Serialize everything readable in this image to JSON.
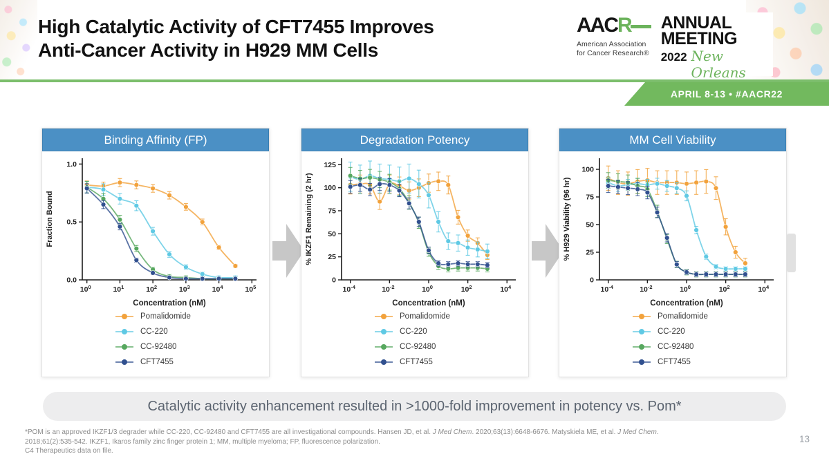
{
  "header": {
    "title_line1": "High Catalytic Activity of CFT7455 Improves",
    "title_line2": "Anti-Cancer Activity in H929 MM Cells",
    "logo": {
      "acronym_black": "AAC",
      "acronym_green": "R",
      "org_line1": "American Association",
      "org_line2": "for Cancer Research®",
      "event_line1": "ANNUAL",
      "event_line2": "MEETING",
      "year": "2022",
      "city": "New Orleans"
    },
    "ribbon_text": "APRIL 8-13 • #AACR22"
  },
  "colors": {
    "card_header_blue": "#4B90C5",
    "ribbon_green": "#72B95E",
    "rule_green": "#7CBE6C",
    "arrow_gray": "#C7C7C7",
    "pill_bg": "#EDEDEE"
  },
  "banner": {
    "text": "Catalytic activity enhancement resulted in >1000-fold improvement in potency vs. Pom*"
  },
  "footnote": {
    "lines": [
      [
        {
          "text": "*POM is an approved IKZF1/3 degrader while CC-220, CC-92480 and CFT7455 are all investigational compounds. Hansen JD, et al. "
        },
        {
          "text": "J Med Chem",
          "italic": true
        },
        {
          "text": ". 2020;63(13):6648-6676. Matyskiela ME, et al. "
        },
        {
          "text": "J Med Chem",
          "italic": true
        },
        {
          "text": "."
        }
      ],
      [
        {
          "text": "2018;61(2):535-542. IKZF1, Ikaros family zinc finger protein 1; MM, multiple myeloma; FP, fluorescence polarization."
        }
      ],
      [
        {
          "text": "C4 Therapeutics data on file."
        }
      ]
    ]
  },
  "page_number": "13",
  "chart_data": [
    {
      "type": "scatter",
      "title": "Binding Affinity (FP)",
      "xlabel": "Concentration (nM)",
      "ylabel": "Fraction Bound",
      "x_scale": "log",
      "xticks_exp": [
        0,
        1,
        2,
        3,
        4,
        5
      ],
      "xlim_exp": [
        -0.14,
        5.14
      ],
      "yticks": [
        0,
        0.5,
        1.0
      ],
      "ytick_decimals": 1,
      "ylim": [
        0,
        1.05
      ],
      "grid": false,
      "legend_position": "below-left",
      "x": [
        1,
        3.16,
        10,
        31.6,
        100,
        316,
        1000,
        3160,
        10000,
        31600
      ],
      "series": [
        {
          "name": "Pomalidomide",
          "color": "#F2A23C",
          "err": 0.035,
          "values": [
            0.82,
            0.81,
            0.84,
            0.82,
            0.79,
            0.73,
            0.63,
            0.5,
            0.28,
            0.12
          ]
        },
        {
          "name": "CC-220",
          "color": "#5FC9E4",
          "err": 0.05,
          "values": [
            0.8,
            0.78,
            0.7,
            0.64,
            0.42,
            0.22,
            0.11,
            0.05,
            0.02,
            0.02
          ]
        },
        {
          "name": "CC-92480",
          "color": "#57A85F",
          "err": 0.05,
          "values": [
            0.8,
            0.7,
            0.52,
            0.27,
            0.09,
            0.03,
            0.02,
            0.01,
            0.01,
            0.01
          ]
        },
        {
          "name": "CFT7455",
          "color": "#31508F",
          "err": 0.04,
          "values": [
            0.79,
            0.65,
            0.46,
            0.17,
            0.06,
            0.02,
            0.01,
            0.01,
            0.01,
            0.01
          ]
        }
      ]
    },
    {
      "type": "scatter",
      "title": "Degradation Potency",
      "xlabel": "Concentration (nM)",
      "ylabel": "% IKZF1 Remaining (2 hr)",
      "x_scale": "log",
      "xticks_exp": [
        -4,
        -2,
        0,
        2,
        4
      ],
      "xlim_exp": [
        -4.45,
        4.45
      ],
      "yticks": [
        0,
        25,
        50,
        75,
        100,
        125
      ],
      "ytick_decimals": 0,
      "ylim": [
        0,
        132
      ],
      "grid": false,
      "legend_position": "below-left",
      "x": [
        0.0001,
        0.000316,
        0.001,
        0.00316,
        0.01,
        0.0316,
        0.1,
        0.316,
        1,
        3.16,
        10,
        31.6,
        100,
        316,
        1000
      ],
      "series": [
        {
          "name": "Pomalidomide",
          "color": "#F2A23C",
          "err": 10,
          "values": [
            103,
            104,
            103,
            85,
            104,
            102,
            97,
            100,
            105,
            107,
            103,
            68,
            48,
            40,
            27
          ]
        },
        {
          "name": "CC-220",
          "color": "#5FC9E4",
          "err": 16,
          "values": [
            112,
            109,
            113,
            110,
            109,
            107,
            110,
            104,
            92,
            63,
            42,
            40,
            35,
            33,
            31
          ]
        },
        {
          "name": "CC-92480",
          "color": "#57A85F",
          "err": 9,
          "values": [
            113,
            110,
            111,
            109,
            106,
            99,
            84,
            62,
            30,
            15,
            12,
            13,
            13,
            13,
            12
          ]
        },
        {
          "name": "CFT7455",
          "color": "#31508F",
          "err": 7,
          "values": [
            101,
            103,
            98,
            104,
            103,
            97,
            83,
            63,
            32,
            18,
            17,
            18,
            17,
            17,
            16
          ]
        }
      ]
    },
    {
      "type": "scatter",
      "title": "MM Cell Viability",
      "xlabel": "Concentration (nM)",
      "ylabel": "% H929 Viability (96 hr)",
      "x_scale": "log",
      "xticks_exp": [
        -4,
        -2,
        0,
        2,
        4
      ],
      "xlim_exp": [
        -4.45,
        4.45
      ],
      "yticks": [
        0,
        25,
        50,
        75,
        100
      ],
      "ytick_decimals": 0,
      "ylim": [
        0,
        110
      ],
      "grid": false,
      "legend_position": "below-left",
      "x": [
        0.0001,
        0.000316,
        0.001,
        0.00316,
        0.01,
        0.0316,
        0.1,
        0.316,
        1,
        3.16,
        10,
        31.6,
        100,
        316,
        1000
      ],
      "series": [
        {
          "name": "Pomalidomide",
          "color": "#F2A23C",
          "err": 11,
          "values": [
            92,
            88,
            87,
            89,
            90,
            88,
            88,
            88,
            87,
            88,
            89,
            83,
            48,
            25,
            15
          ]
        },
        {
          "name": "CC-220",
          "color": "#5FC9E4",
          "err": 5,
          "values": [
            88,
            85,
            86,
            87,
            86,
            87,
            85,
            83,
            76,
            45,
            21,
            12,
            10,
            10,
            10
          ]
        },
        {
          "name": "CC-92480",
          "color": "#57A85F",
          "err": 7,
          "values": [
            90,
            89,
            88,
            85,
            82,
            62,
            37,
            14,
            7,
            5,
            5,
            5,
            5,
            5,
            5
          ]
        },
        {
          "name": "CFT7455",
          "color": "#31508F",
          "err": 6,
          "values": [
            85,
            84,
            83,
            82,
            79,
            61,
            38,
            14,
            7,
            5,
            5,
            5,
            5,
            5,
            5
          ]
        }
      ]
    }
  ]
}
